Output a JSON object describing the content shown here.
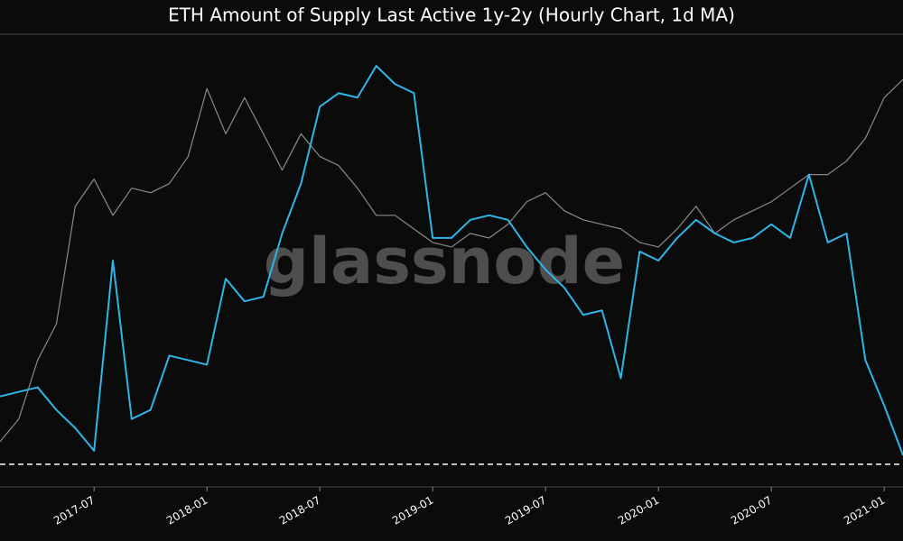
{
  "chart_data": {
    "type": "line",
    "title": "ETH Amount of Supply Last Active 1y-2y (Hourly Chart, 1d MA)",
    "watermark": "glassnode",
    "x": [
      "2017-02",
      "2017-03",
      "2017-04",
      "2017-05",
      "2017-06",
      "2017-07",
      "2017-08",
      "2017-09",
      "2017-10",
      "2017-11",
      "2017-12",
      "2018-01",
      "2018-02",
      "2018-03",
      "2018-04",
      "2018-05",
      "2018-06",
      "2018-07",
      "2018-08",
      "2018-09",
      "2018-10",
      "2018-11",
      "2018-12",
      "2019-01",
      "2019-02",
      "2019-03",
      "2019-04",
      "2019-05",
      "2019-06",
      "2019-07",
      "2019-08",
      "2019-09",
      "2019-10",
      "2019-11",
      "2019-12",
      "2020-01",
      "2020-02",
      "2020-03",
      "2020-04",
      "2020-05",
      "2020-06",
      "2020-07",
      "2020-08",
      "2020-09",
      "2020-10",
      "2020-11",
      "2020-12",
      "2021-01",
      "2021-02"
    ],
    "series": [
      {
        "color": "#8a8a8a",
        "values": [
          10,
          15,
          28,
          36,
          62,
          68,
          60,
          66,
          65,
          67,
          73,
          88,
          78,
          86,
          78,
          70,
          78,
          73,
          71,
          66,
          60,
          60,
          57,
          54,
          53,
          56,
          55,
          58,
          63,
          65,
          61,
          59,
          58,
          57,
          54,
          53,
          57,
          62,
          56,
          59,
          61,
          63,
          66,
          69,
          69,
          72,
          77,
          86,
          90
        ]
      },
      {
        "color": "#2fb5e8",
        "values": [
          20,
          21,
          22,
          17,
          13,
          8,
          50,
          15,
          17,
          29,
          28,
          27,
          46,
          41,
          42,
          56,
          67,
          84,
          87,
          86,
          93,
          89,
          87,
          55,
          55,
          59,
          60,
          59,
          53,
          48,
          44,
          38,
          39,
          24,
          52,
          50,
          55,
          59,
          56,
          54,
          55,
          58,
          55,
          69,
          54,
          56,
          28,
          18,
          7
        ]
      }
    ],
    "xlim": [
      "2017-02",
      "2021-02"
    ],
    "xticks": [
      "2017-07",
      "2018-01",
      "2018-07",
      "2019-01",
      "2019-07",
      "2020-01",
      "2020-07",
      "2021-01"
    ],
    "ylim": [
      0,
      100
    ],
    "hline": 5
  }
}
